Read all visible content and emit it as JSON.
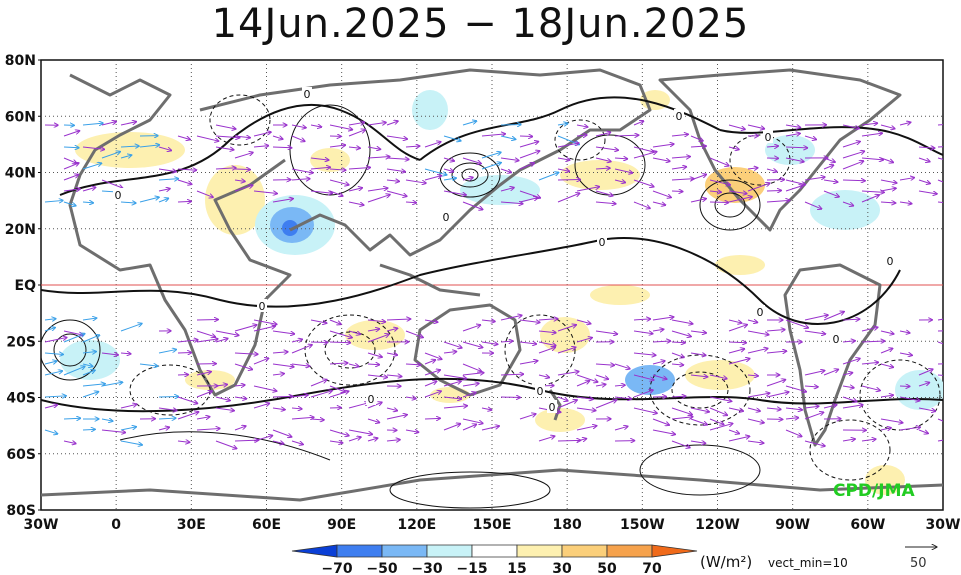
{
  "title": "14Jun.2025 − 18Jun.2025",
  "credit": "CPD/JMA",
  "lat_labels": [
    "80N",
    "60N",
    "40N",
    "20N",
    "EQ",
    "20S",
    "40S",
    "60S",
    "80S"
  ],
  "lon_labels": [
    "30W",
    "0",
    "30E",
    "60E",
    "90E",
    "120E",
    "150E",
    "180",
    "150W",
    "120W",
    "90W",
    "60W",
    "30W"
  ],
  "colorbar": {
    "ticks": [
      "−70",
      "−50",
      "−30",
      "−15",
      "15",
      "30",
      "50",
      "70"
    ],
    "colors": [
      "#0a3fd6",
      "#3e7ef0",
      "#7ab8f5",
      "#c8f2f7",
      "#ffffff",
      "#fdf0b0",
      "#fbcf7a",
      "#f6a24c",
      "#f06a1a"
    ],
    "unit": "(W/m²)",
    "vector_min": "vect_min=10",
    "vector_ref": "50"
  },
  "contour_labels": [
    "0",
    "0",
    "0",
    "0",
    "0",
    "0",
    "0",
    "0",
    "0",
    "0",
    "0",
    "0",
    "0"
  ],
  "colors": {
    "coast": "#6e6e6e",
    "equator": "#e05050",
    "vector_main": "#9932cc",
    "vector_alt": "#3aa0e8"
  }
}
